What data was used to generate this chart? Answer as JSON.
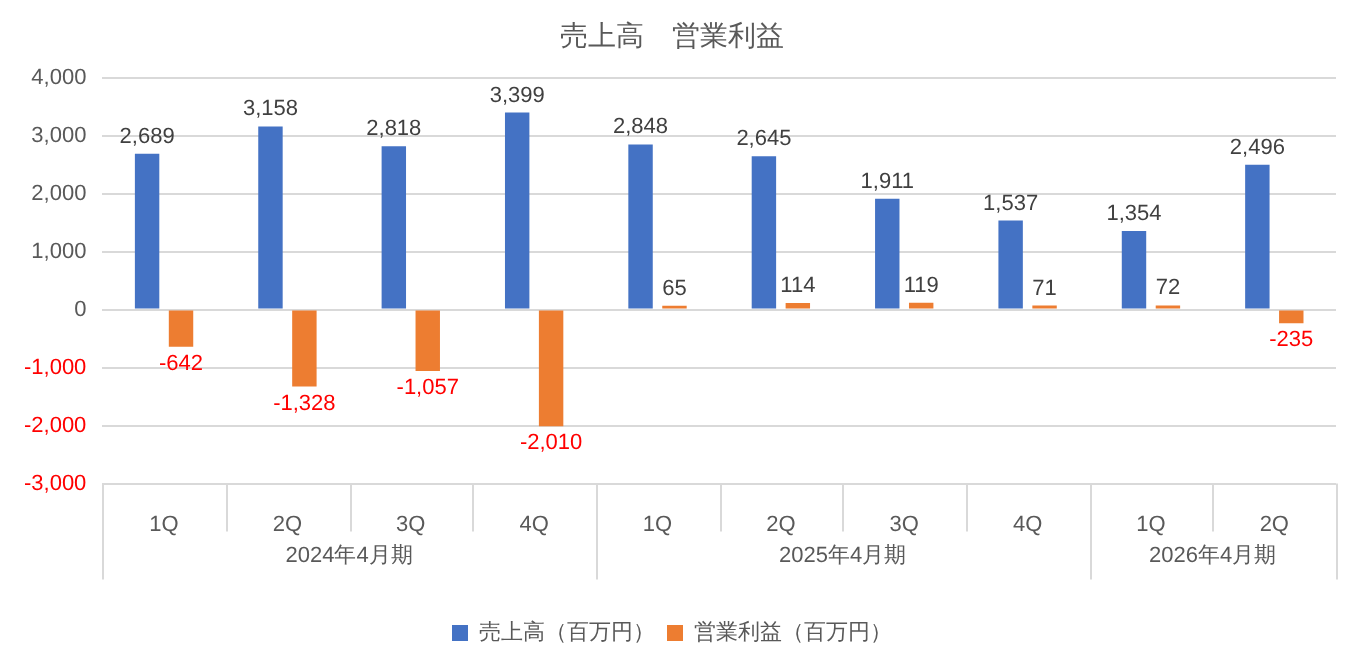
{
  "chart_data": {
    "type": "bar",
    "title": "売上高　営業利益",
    "categories": [
      "1Q",
      "2Q",
      "3Q",
      "4Q",
      "1Q",
      "2Q",
      "3Q",
      "4Q",
      "1Q",
      "2Q"
    ],
    "annotations": [
      "2024年4月期",
      "2025年4月期",
      "2026年4月期"
    ],
    "series": [
      {
        "name": "売上高（百万円）",
        "color": "#4472c4",
        "values": [
          2689,
          3158,
          2818,
          3399,
          2848,
          2645,
          1911,
          1537,
          1354,
          2496
        ],
        "value_labels": [
          "2,689",
          "3,158",
          "2,818",
          "3,399",
          "2,848",
          "2,645",
          "1,911",
          "1,537",
          "1,354",
          "2,496"
        ]
      },
      {
        "name": "営業利益（百万円）",
        "color": "#ed7d31",
        "values": [
          -642,
          -1328,
          -1057,
          -2010,
          65,
          114,
          119,
          71,
          72,
          -235
        ],
        "value_labels": [
          "-642",
          "-1,328",
          "-1,057",
          "-2,010",
          "65",
          "114",
          "119",
          "71",
          "72",
          "-235"
        ]
      }
    ],
    "ylim": [
      -3000,
      4000
    ],
    "yticks": [
      {
        "value": -3000,
        "label": "-3,000"
      },
      {
        "value": -2000,
        "label": "-2,000"
      },
      {
        "value": -1000,
        "label": "-1,000"
      },
      0,
      {
        "value": 1000,
        "label": "1,000"
      },
      {
        "value": 2000,
        "label": "2,000"
      },
      {
        "value": 3000,
        "label": "3,000"
      },
      {
        "value": 4000,
        "label": "4,000"
      }
    ],
    "grid": "y",
    "legend": "bottom"
  }
}
